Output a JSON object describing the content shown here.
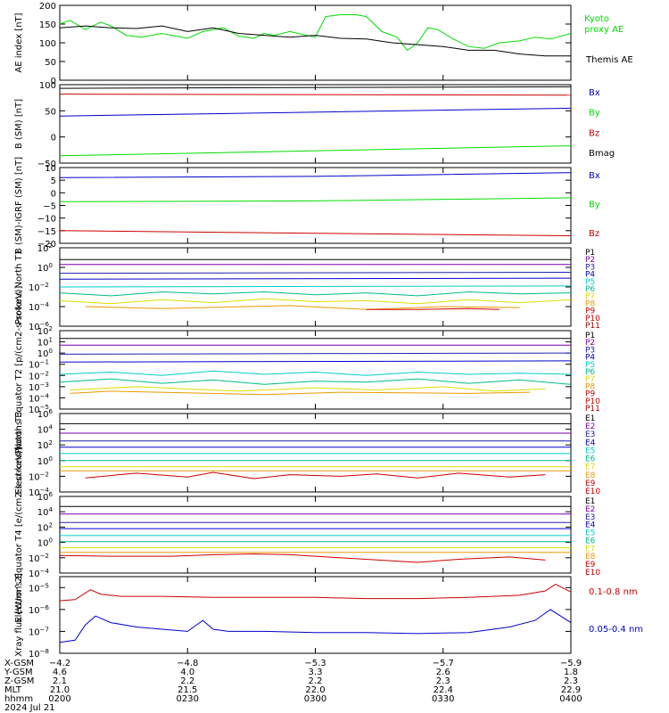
{
  "colors": {
    "black": "#000000",
    "green": "#00dd00",
    "blue": "#0000cc",
    "red": "#cc0000",
    "purple": "#7a00aa",
    "navy": "#2020aa",
    "cyan": "#00cccc",
    "teal": "#00bb88",
    "yellow": "#dddd00",
    "orange": "#ee9900",
    "darkred": "#aa0000"
  },
  "time_range": {
    "start": "02:00",
    "end": "04:00",
    "hour_positions": [
      0,
      0.25,
      0.5,
      0.75,
      1.0
    ]
  },
  "footer": {
    "row_labels": [
      "X-GSM",
      "Y-GSM",
      "Z-GSM",
      "MLT",
      "hhmm",
      "2024 Jul 21"
    ],
    "columns": [
      [
        "-4.2",
        "4.6",
        "2.1",
        "21.0",
        "0200"
      ],
      [
        "-4.8",
        "4.0",
        "2.2",
        "21.5",
        "0230"
      ],
      [
        "-5.3",
        "3.3",
        "2.2",
        "22.0",
        "0300"
      ],
      [
        "-5.7",
        "2.6",
        "2.3",
        "22.4",
        "0330"
      ],
      [
        "-5.9",
        "1.8",
        "2.3",
        "22.9",
        "0400"
      ]
    ]
  },
  "chart_data": [
    {
      "type": "line",
      "ylabel": "AE index [nT]",
      "ylim": [
        0,
        200
      ],
      "yticks": [
        "0",
        "50",
        "100",
        "150",
        "200"
      ],
      "series": [
        {
          "name": "Kyoto proxy AE",
          "color_key": "green",
          "x": [
            0,
            0.02,
            0.05,
            0.08,
            0.1,
            0.13,
            0.16,
            0.2,
            0.25,
            0.28,
            0.32,
            0.35,
            0.38,
            0.4,
            0.42,
            0.45,
            0.5,
            0.52,
            0.55,
            0.58,
            0.6,
            0.63,
            0.66,
            0.68,
            0.7,
            0.72,
            0.74,
            0.77,
            0.8,
            0.83,
            0.86,
            0.9,
            0.93,
            0.96,
            1.0
          ],
          "y": [
            150,
            160,
            135,
            155,
            145,
            120,
            115,
            125,
            112,
            130,
            140,
            118,
            112,
            125,
            120,
            130,
            115,
            170,
            175,
            175,
            170,
            130,
            115,
            80,
            100,
            140,
            135,
            110,
            90,
            85,
            100,
            105,
            115,
            110,
            125
          ]
        },
        {
          "name": "Themis AE",
          "color_key": "black",
          "x": [
            0,
            0.05,
            0.1,
            0.15,
            0.2,
            0.25,
            0.3,
            0.35,
            0.4,
            0.45,
            0.5,
            0.55,
            0.6,
            0.65,
            0.7,
            0.75,
            0.8,
            0.85,
            0.9,
            0.95,
            1.0
          ],
          "y": [
            140,
            145,
            140,
            138,
            145,
            130,
            140,
            125,
            120,
            115,
            120,
            112,
            110,
            100,
            95,
            90,
            80,
            80,
            70,
            65,
            65
          ]
        }
      ]
    },
    {
      "type": "line",
      "ylabel": "B (SM) [nT]",
      "ylim": [
        -50,
        100
      ],
      "yticks": [
        "-50",
        "0",
        "50",
        "100"
      ],
      "series": [
        {
          "name": "Bx",
          "color_key": "blue",
          "x": [
            0,
            1
          ],
          "y": [
            40,
            55
          ]
        },
        {
          "name": "By",
          "color_key": "green",
          "x": [
            0,
            1
          ],
          "y": [
            -36,
            -17
          ]
        },
        {
          "name": "Bz",
          "color_key": "red",
          "x": [
            0,
            1
          ],
          "y": [
            82,
            80
          ]
        },
        {
          "name": "Bmag",
          "color_key": "black",
          "x": [
            0,
            1
          ],
          "y": [
            93,
            96
          ]
        }
      ]
    },
    {
      "type": "line",
      "ylabel": "B (SM)-IGRF (SM) [nT]",
      "ylim": [
        -20,
        10
      ],
      "yticks": [
        "-20",
        "-15",
        "-10",
        "-5",
        "0",
        "5",
        "10"
      ],
      "series": [
        {
          "name": "Bx",
          "color_key": "blue",
          "x": [
            0,
            0.5,
            1
          ],
          "y": [
            6,
            6.5,
            8
          ]
        },
        {
          "name": "By",
          "color_key": "green",
          "x": [
            0,
            0.5,
            1
          ],
          "y": [
            -3.5,
            -3.2,
            -2
          ]
        },
        {
          "name": "Bz",
          "color_key": "red",
          "x": [
            0,
            0.5,
            1
          ],
          "y": [
            -15,
            -16,
            -17
          ]
        }
      ]
    },
    {
      "type": "line",
      "ylabel": "Protons North T1",
      "scale": "log",
      "ylim": [
        -6,
        2
      ],
      "yticks": [
        "10^-6",
        "10^-4",
        "10^-2",
        "10^0",
        "10^2"
      ],
      "series": [
        {
          "name": "P1",
          "color_key": "black",
          "x": [
            0,
            1
          ],
          "y": [
            0.8,
            0.8
          ]
        },
        {
          "name": "P2",
          "color_key": "purple",
          "x": [
            0,
            1
          ],
          "y": [
            0.3,
            0.3
          ]
        },
        {
          "name": "P3",
          "color_key": "navy",
          "x": [
            0,
            1
          ],
          "y": [
            -0.6,
            -0.5
          ]
        },
        {
          "name": "P4",
          "color_key": "blue",
          "x": [
            0,
            1
          ],
          "y": [
            -1.2,
            -1.1
          ]
        },
        {
          "name": "P5",
          "color_key": "cyan",
          "x": [
            0,
            1
          ],
          "y": [
            -2.0,
            -1.9
          ]
        },
        {
          "name": "P6",
          "color_key": "teal",
          "x": [
            0,
            0.1,
            0.2,
            0.3,
            0.4,
            0.5,
            0.6,
            0.7,
            0.8,
            0.9,
            1
          ],
          "y": [
            -2.6,
            -2.9,
            -2.5,
            -2.7,
            -2.5,
            -2.8,
            -2.6,
            -2.9,
            -2.5,
            -2.7,
            -2.6
          ]
        },
        {
          "name": "P7",
          "color_key": "yellow",
          "x": [
            0,
            0.1,
            0.2,
            0.3,
            0.4,
            0.5,
            0.6,
            0.7,
            0.8,
            0.9,
            1
          ],
          "y": [
            -3.4,
            -3.7,
            -3.3,
            -3.6,
            -3.2,
            -3.5,
            -3.4,
            -3.7,
            -3.3,
            -3.6,
            -3.3
          ]
        },
        {
          "name": "P8",
          "color_key": "orange",
          "x": [
            0.05,
            0.2,
            0.45,
            0.6,
            0.75,
            0.9
          ],
          "y": [
            -4.0,
            -4.2,
            -3.9,
            -4.3,
            -4.0,
            -4.1
          ]
        },
        {
          "name": "P9",
          "color_key": "red",
          "x": [
            0.6,
            0.7,
            0.8,
            0.86
          ],
          "y": [
            -4.3,
            -4.3,
            -4.2,
            -4.3
          ]
        }
      ],
      "legend": [
        "P1",
        "P2",
        "P3",
        "P4",
        "P5",
        "P6",
        "P7",
        "P8",
        "P9",
        "P10",
        "P11"
      ]
    },
    {
      "type": "line",
      "ylabel": "Protons Equator T2 [p/(cm2-s-sr-keV)]",
      "scale": "log",
      "ylim": [
        -5,
        2
      ],
      "yticks": [
        "10^-5",
        "10^-4",
        "10^-3",
        "10^-2",
        "10^-1",
        "10^0",
        "10^1",
        "10^2"
      ],
      "series": [
        {
          "name": "P1",
          "color_key": "black",
          "x": [
            0,
            1
          ],
          "y": [
            1.3,
            1.3
          ]
        },
        {
          "name": "P2",
          "color_key": "purple",
          "x": [
            0,
            1
          ],
          "y": [
            0.7,
            0.7
          ]
        },
        {
          "name": "P3",
          "color_key": "navy",
          "x": [
            0,
            1
          ],
          "y": [
            -0.1,
            0.0
          ]
        },
        {
          "name": "P4",
          "color_key": "blue",
          "x": [
            0,
            1
          ],
          "y": [
            -0.8,
            -0.7
          ]
        },
        {
          "name": "P5",
          "color_key": "cyan",
          "x": [
            0,
            0.1,
            0.2,
            0.3,
            0.4,
            0.5,
            0.6,
            0.7,
            0.8,
            0.9,
            1
          ],
          "y": [
            -1.9,
            -1.7,
            -2.0,
            -1.6,
            -1.9,
            -1.7,
            -2.0,
            -1.7,
            -1.9,
            -1.8,
            -1.9
          ]
        },
        {
          "name": "P6",
          "color_key": "teal",
          "x": [
            0,
            0.1,
            0.2,
            0.3,
            0.4,
            0.5,
            0.6,
            0.7,
            0.8,
            0.9,
            1
          ],
          "y": [
            -2.6,
            -2.3,
            -2.7,
            -2.4,
            -2.8,
            -2.5,
            -2.6,
            -2.3,
            -2.7,
            -2.4,
            -2.8
          ]
        },
        {
          "name": "P7",
          "color_key": "yellow",
          "x": [
            0.02,
            0.15,
            0.35,
            0.5,
            0.62,
            0.75,
            0.85,
            0.95
          ],
          "y": [
            -3.3,
            -3.0,
            -3.4,
            -3.1,
            -3.3,
            -3.0,
            -3.4,
            -3.2
          ]
        },
        {
          "name": "P8",
          "color_key": "orange",
          "x": [
            0.02,
            0.1,
            0.4,
            0.55,
            0.8,
            0.92
          ],
          "y": [
            -3.6,
            -3.4,
            -3.7,
            -3.5,
            -3.6,
            -3.5
          ]
        }
      ],
      "legend": [
        "P1",
        "P2",
        "P3",
        "P4",
        "P5",
        "P6",
        "P7",
        "P8",
        "P9",
        "P10",
        "P11"
      ]
    },
    {
      "type": "line",
      "ylabel": "Electrons North T3",
      "scale": "log",
      "ylim": [
        -4,
        6
      ],
      "yticks": [
        "10^-4",
        "10^-2",
        "10^0",
        "10^2",
        "10^4",
        "10^6"
      ],
      "series": [
        {
          "name": "E1",
          "color_key": "black",
          "x": [
            0,
            1
          ],
          "y": [
            4.7,
            4.7
          ]
        },
        {
          "name": "E2",
          "color_key": "purple",
          "x": [
            0,
            1
          ],
          "y": [
            3.5,
            3.5
          ]
        },
        {
          "name": "E3",
          "color_key": "navy",
          "x": [
            0,
            1
          ],
          "y": [
            2.5,
            2.5
          ]
        },
        {
          "name": "E4",
          "color_key": "blue",
          "x": [
            0,
            1
          ],
          "y": [
            1.7,
            1.7
          ]
        },
        {
          "name": "E5",
          "color_key": "cyan",
          "x": [
            0,
            1
          ],
          "y": [
            0.9,
            0.9
          ]
        },
        {
          "name": "E6",
          "color_key": "teal",
          "x": [
            0,
            1
          ],
          "y": [
            0.0,
            0.0
          ]
        },
        {
          "name": "E7",
          "color_key": "yellow",
          "x": [
            0,
            1
          ],
          "y": [
            -0.8,
            -0.8
          ]
        },
        {
          "name": "E8",
          "color_key": "orange",
          "x": [
            0,
            1
          ],
          "y": [
            -1.3,
            -1.3
          ]
        },
        {
          "name": "E9",
          "color_key": "red",
          "x": [
            0.05,
            0.15,
            0.25,
            0.3,
            0.38,
            0.45,
            0.55,
            0.62,
            0.7,
            0.78,
            0.88,
            0.95
          ],
          "y": [
            -2.2,
            -1.6,
            -2.1,
            -1.5,
            -2.3,
            -1.8,
            -2.0,
            -1.7,
            -2.2,
            -1.6,
            -2.1,
            -1.8
          ]
        }
      ],
      "legend": [
        "E1",
        "E2",
        "E3",
        "E4",
        "E5",
        "E6",
        "E7",
        "E8",
        "E9",
        "E10"
      ]
    },
    {
      "type": "line",
      "ylabel": "Electrons Equator T4 [e/(cm2-s-sr-keV)]",
      "scale": "log",
      "ylim": [
        -4,
        6
      ],
      "yticks": [
        "10^-4",
        "10^-2",
        "10^0",
        "10^2",
        "10^4",
        "10^6"
      ],
      "series": [
        {
          "name": "E1",
          "color_key": "black",
          "x": [
            0,
            1
          ],
          "y": [
            4.7,
            4.7
          ]
        },
        {
          "name": "E2",
          "color_key": "purple",
          "x": [
            0,
            1
          ],
          "y": [
            3.7,
            3.7
          ]
        },
        {
          "name": "E3",
          "color_key": "navy",
          "x": [
            0,
            1
          ],
          "y": [
            2.6,
            2.6
          ]
        },
        {
          "name": "E4",
          "color_key": "blue",
          "x": [
            0,
            1
          ],
          "y": [
            1.8,
            1.8
          ]
        },
        {
          "name": "E5",
          "color_key": "cyan",
          "x": [
            0,
            1
          ],
          "y": [
            0.9,
            0.9
          ]
        },
        {
          "name": "E6",
          "color_key": "teal",
          "x": [
            0,
            1
          ],
          "y": [
            0.1,
            0.1
          ]
        },
        {
          "name": "E7",
          "color_key": "yellow",
          "x": [
            0,
            1
          ],
          "y": [
            -0.7,
            -0.7
          ]
        },
        {
          "name": "E8",
          "color_key": "orange",
          "x": [
            0,
            1
          ],
          "y": [
            -1.3,
            -1.3
          ]
        },
        {
          "name": "E9",
          "color_key": "red",
          "x": [
            0.0,
            0.1,
            0.22,
            0.3,
            0.38,
            0.45,
            0.7,
            0.78,
            0.88,
            0.95
          ],
          "y": [
            -1.7,
            -1.8,
            -1.8,
            -1.6,
            -1.5,
            -1.6,
            -2.6,
            -2.2,
            -1.9,
            -2.3
          ]
        }
      ],
      "legend": [
        "E1",
        "E2",
        "E3",
        "E4",
        "E5",
        "E6",
        "E7",
        "E8",
        "E9",
        "E10"
      ]
    },
    {
      "type": "line",
      "ylabel": "Xray flux [W/m^2]",
      "scale": "log",
      "ylim": [
        -8,
        -4.5
      ],
      "yticks": [
        "10^-8",
        "10^-7",
        "10^-6",
        "10^-5"
      ],
      "series": [
        {
          "name": "0.1-0.8 nm",
          "color_key": "red",
          "x": [
            0,
            0.03,
            0.06,
            0.08,
            0.12,
            0.2,
            0.3,
            0.4,
            0.5,
            0.6,
            0.7,
            0.8,
            0.9,
            0.95,
            0.97,
            1.0
          ],
          "y": [
            -5.6,
            -5.55,
            -5.1,
            -5.3,
            -5.4,
            -5.4,
            -5.45,
            -5.45,
            -5.45,
            -5.5,
            -5.5,
            -5.45,
            -5.35,
            -5.15,
            -4.85,
            -5.2
          ]
        },
        {
          "name": "0.05-0.4 nm",
          "color_key": "blue",
          "x": [
            0,
            0.03,
            0.05,
            0.07,
            0.1,
            0.15,
            0.2,
            0.25,
            0.28,
            0.3,
            0.33,
            0.4,
            0.5,
            0.6,
            0.7,
            0.8,
            0.88,
            0.93,
            0.96,
            0.98,
            1.0
          ],
          "y": [
            -7.5,
            -7.4,
            -6.7,
            -6.3,
            -6.6,
            -6.8,
            -6.9,
            -7.0,
            -6.5,
            -6.9,
            -7.0,
            -7.0,
            -7.05,
            -7.05,
            -7.1,
            -7.05,
            -6.8,
            -6.5,
            -6.0,
            -6.3,
            -6.6
          ]
        }
      ]
    }
  ]
}
